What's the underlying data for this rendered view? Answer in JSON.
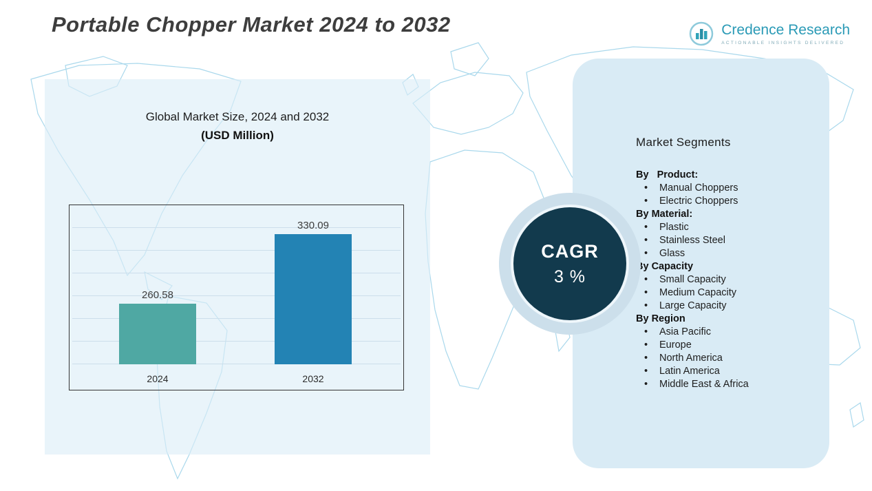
{
  "header": {
    "title": "Portable Chopper Market 2024 to 2032",
    "logo": {
      "brand": "Credence Research",
      "tagline": "Actionable Insights Delivered"
    }
  },
  "chart_data": {
    "type": "bar",
    "title": "Global Market Size, 2024 and 2032",
    "subtitle": "(USD Million)",
    "categories": [
      "2024",
      "2032"
    ],
    "values": [
      260.58,
      330.09
    ],
    "colors": [
      "#4FA8A3",
      "#2383B4"
    ],
    "ylim": [
      200,
      360
    ],
    "grid": true,
    "legend": "none",
    "ylabel": "USD Million",
    "xlabel": ""
  },
  "cagr": {
    "label": "CAGR",
    "value": "3 %"
  },
  "segments": {
    "heading": "Market Segments",
    "groups": [
      {
        "label": "By   Product:",
        "items": [
          "Manual Choppers",
          "Electric Choppers"
        ]
      },
      {
        "label": "By Material:",
        "items": [
          "Plastic",
          "Stainless Steel",
          "Glass"
        ]
      },
      {
        "label": "By Capacity",
        "items": [
          "Small Capacity",
          "Medium Capacity",
          "Large Capacity"
        ]
      },
      {
        "label": "By Region",
        "items": [
          "Asia Pacific",
          "Europe",
          "North America",
          "Latin America",
          "Middle East & Africa"
        ]
      }
    ]
  }
}
